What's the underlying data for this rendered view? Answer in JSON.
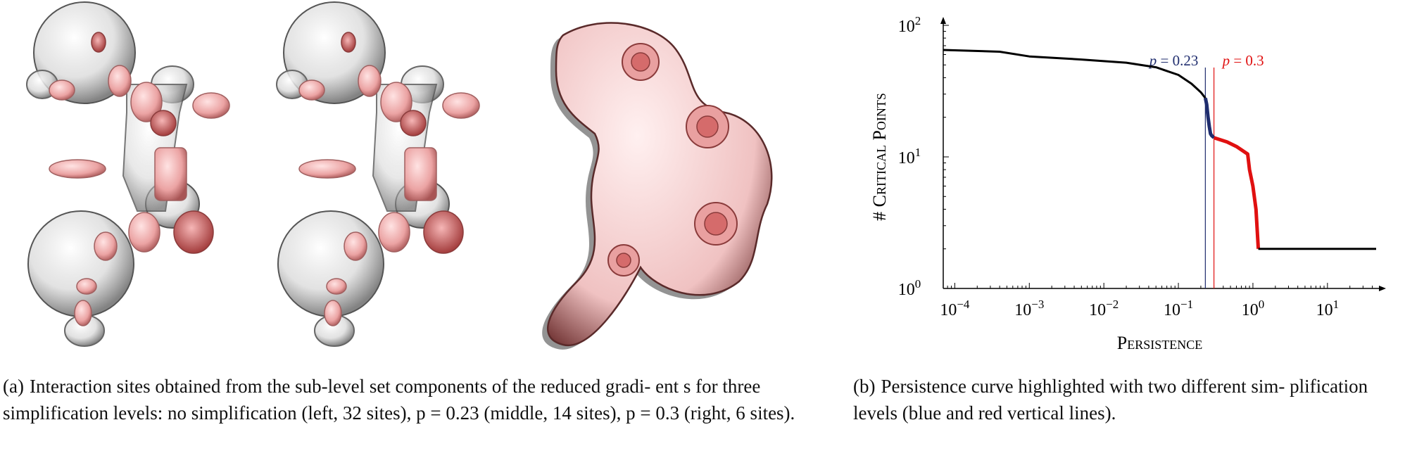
{
  "figure": {
    "caption_a": {
      "label": "(a)",
      "text": "Interaction sites obtained from the sub-level set components of the reduced gradi- ent s for three simplification levels: no simplification (left, 32 sites), p = 0.23 (middle, 14 sites), p = 0.3 (right, 6 sites)."
    },
    "caption_b": {
      "label": "(b)",
      "text": "Persistence curve highlighted with two different sim- plification levels (blue and red vertical lines)."
    },
    "renders": [
      {
        "name": "no simplification",
        "sites": 32
      },
      {
        "name": "p = 0.23",
        "sites": 14
      },
      {
        "name": "p = 0.3",
        "sites": 6
      }
    ]
  },
  "chart_data": {
    "type": "line",
    "xlabel": "Persistence",
    "ylabel": "# Critical Points",
    "xscale": "log",
    "yscale": "log",
    "xlim": [
      7e-05,
      45
    ],
    "ylim": [
      1,
      100
    ],
    "x_ticks": [
      "10^-4",
      "10^-3",
      "10^-2",
      "10^-1",
      "10^0",
      "10^1"
    ],
    "y_ticks": [
      "10^0",
      "10^1",
      "10^2"
    ],
    "series": [
      {
        "color": "#000000",
        "points": [
          [
            7e-05,
            65
          ],
          [
            0.0004,
            63
          ],
          [
            0.001,
            58
          ],
          [
            0.005,
            55
          ],
          [
            0.02,
            52
          ],
          [
            0.05,
            48
          ],
          [
            0.1,
            42
          ],
          [
            0.15,
            36
          ],
          [
            0.2,
            31
          ],
          [
            0.23,
            28
          ]
        ]
      },
      {
        "color": "#1f2d6e",
        "points": [
          [
            0.23,
            28
          ],
          [
            0.24,
            25
          ],
          [
            0.25,
            20
          ],
          [
            0.26,
            17
          ],
          [
            0.27,
            15
          ],
          [
            0.28,
            14.5
          ],
          [
            0.3,
            14
          ]
        ]
      },
      {
        "color": "#e01010",
        "points": [
          [
            0.3,
            14
          ],
          [
            0.45,
            13
          ],
          [
            0.6,
            12
          ],
          [
            0.85,
            10.5
          ],
          [
            0.9,
            8
          ],
          [
            1.0,
            6
          ],
          [
            1.1,
            4
          ],
          [
            1.18,
            2
          ]
        ]
      },
      {
        "color": "#000000",
        "points": [
          [
            1.18,
            2
          ],
          [
            45,
            2
          ]
        ]
      }
    ],
    "annotations": [
      {
        "text": "p = 0.23",
        "x": 0.23,
        "color": "#1f2d6e"
      },
      {
        "text": "p = 0.3",
        "x": 0.3,
        "color": "#e01010"
      }
    ]
  }
}
